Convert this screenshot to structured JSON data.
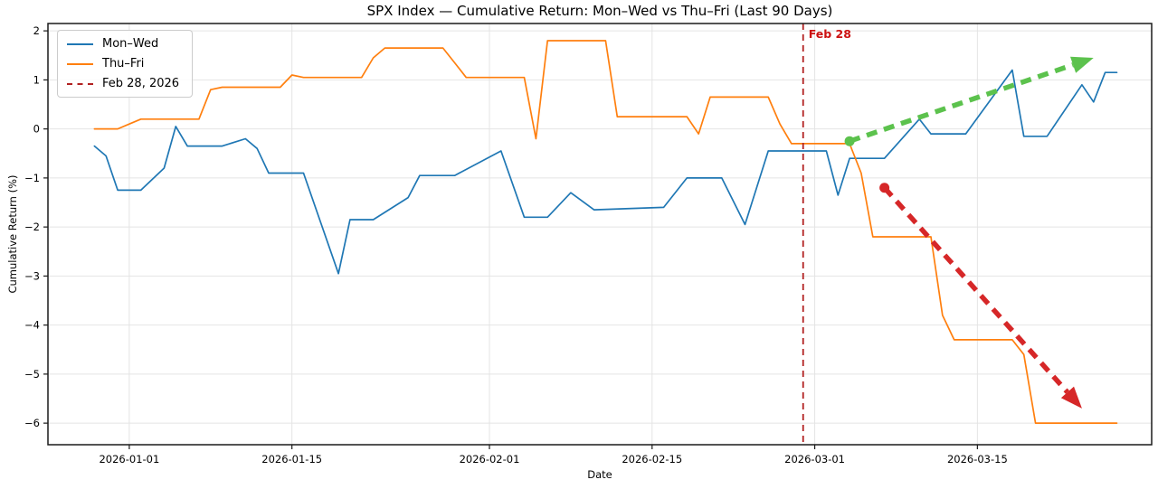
{
  "chart_data": {
    "type": "line",
    "title": "SPX Index — Cumulative Return: Mon–Wed vs Thu–Fri (Last 90 Days)",
    "xlabel": "Date",
    "ylabel": "Cumulative Return (%)",
    "x_domain": [
      "2025-12-25",
      "2026-03-30"
    ],
    "ylim": [
      -6.44,
      2.15
    ],
    "yticks": [
      2,
      1,
      0,
      -1,
      -2,
      -3,
      -4,
      -5,
      -6
    ],
    "xticks": [
      "2026-01-01",
      "2026-01-15",
      "2026-02-01",
      "2026-02-15",
      "2026-03-01",
      "2026-03-15"
    ],
    "grid": true,
    "legend": {
      "position": "upper-left",
      "entries": [
        {
          "label": "Mon–Wed",
          "color": "#1f77b4",
          "style": "solid"
        },
        {
          "label": "Thu–Fri",
          "color": "#ff7f0e",
          "style": "solid"
        },
        {
          "label": "Feb 28, 2026",
          "color": "#b22222",
          "style": "dashed"
        }
      ]
    },
    "series": [
      {
        "name": "Mon–Wed",
        "color": "#1f77b4",
        "points": [
          [
            "2025-12-29",
            -0.35
          ],
          [
            "2025-12-30",
            -0.55
          ],
          [
            "2025-12-31",
            -1.25
          ],
          [
            "2026-01-02",
            -1.25
          ],
          [
            "2026-01-04",
            -0.8
          ],
          [
            "2026-01-05",
            0.05
          ],
          [
            "2026-01-06",
            -0.35
          ],
          [
            "2026-01-09",
            -0.35
          ],
          [
            "2026-01-11",
            -0.2
          ],
          [
            "2026-01-12",
            -0.4
          ],
          [
            "2026-01-13",
            -0.9
          ],
          [
            "2026-01-16",
            -0.9
          ],
          [
            "2026-01-19",
            -2.95
          ],
          [
            "2026-01-20",
            -1.85
          ],
          [
            "2026-01-22",
            -1.85
          ],
          [
            "2026-01-25",
            -1.4
          ],
          [
            "2026-01-26",
            -0.95
          ],
          [
            "2026-01-29",
            -0.95
          ],
          [
            "2026-02-02",
            -0.45
          ],
          [
            "2026-02-04",
            -1.8
          ],
          [
            "2026-02-06",
            -1.8
          ],
          [
            "2026-02-08",
            -1.3
          ],
          [
            "2026-02-10",
            -1.65
          ],
          [
            "2026-02-16",
            -1.6
          ],
          [
            "2026-02-18",
            -1.0
          ],
          [
            "2026-02-21",
            -1.0
          ],
          [
            "2026-02-23",
            -1.95
          ],
          [
            "2026-02-25",
            -0.45
          ],
          [
            "2026-03-02",
            -0.45
          ],
          [
            "2026-03-03",
            -1.35
          ],
          [
            "2026-03-04",
            -0.6
          ],
          [
            "2026-03-07",
            -0.6
          ],
          [
            "2026-03-10",
            0.2
          ],
          [
            "2026-03-11",
            -0.1
          ],
          [
            "2026-03-14",
            -0.1
          ],
          [
            "2026-03-18",
            1.2
          ],
          [
            "2026-03-19",
            -0.15
          ],
          [
            "2026-03-21",
            -0.15
          ],
          [
            "2026-03-24",
            0.9
          ],
          [
            "2026-03-25",
            0.55
          ],
          [
            "2026-03-26",
            1.15
          ],
          [
            "2026-03-27",
            1.15
          ]
        ]
      },
      {
        "name": "Thu–Fri",
        "color": "#ff7f0e",
        "points": [
          [
            "2025-12-29",
            0.0
          ],
          [
            "2025-12-31",
            0.0
          ],
          [
            "2026-01-01",
            0.1
          ],
          [
            "2026-01-02",
            0.2
          ],
          [
            "2026-01-07",
            0.2
          ],
          [
            "2026-01-08",
            0.8
          ],
          [
            "2026-01-09",
            0.85
          ],
          [
            "2026-01-14",
            0.85
          ],
          [
            "2026-01-15",
            1.1
          ],
          [
            "2026-01-16",
            1.05
          ],
          [
            "2026-01-21",
            1.05
          ],
          [
            "2026-01-22",
            1.45
          ],
          [
            "2026-01-23",
            1.65
          ],
          [
            "2026-01-28",
            1.65
          ],
          [
            "2026-01-29",
            1.35
          ],
          [
            "2026-01-30",
            1.05
          ],
          [
            "2026-02-04",
            1.05
          ],
          [
            "2026-02-05",
            -0.2
          ],
          [
            "2026-02-06",
            1.8
          ],
          [
            "2026-02-11",
            1.8
          ],
          [
            "2026-02-12",
            0.25
          ],
          [
            "2026-02-18",
            0.25
          ],
          [
            "2026-02-19",
            -0.1
          ],
          [
            "2026-02-20",
            0.65
          ],
          [
            "2026-02-25",
            0.65
          ],
          [
            "2026-02-26",
            0.1
          ],
          [
            "2026-02-27",
            -0.3
          ],
          [
            "2026-03-04",
            -0.3
          ],
          [
            "2026-03-05",
            -0.9
          ],
          [
            "2026-03-06",
            -2.2
          ],
          [
            "2026-03-11",
            -2.2
          ],
          [
            "2026-03-12",
            -3.8
          ],
          [
            "2026-03-13",
            -4.3
          ],
          [
            "2026-03-18",
            -4.3
          ],
          [
            "2026-03-19",
            -4.6
          ],
          [
            "2026-03-20",
            -6.0
          ],
          [
            "2026-03-27",
            -6.0
          ]
        ]
      }
    ],
    "annotations": {
      "vline": {
        "date": "2026-02-28",
        "label": "Feb 28",
        "color": "#b22222",
        "label_color": "#cc1111"
      },
      "green_arrow": {
        "from": [
          "2026-03-04",
          -0.25
        ],
        "to": [
          "2026-03-25",
          1.45
        ],
        "color": "#5cc24d"
      },
      "red_arrow": {
        "from": [
          "2026-03-07",
          -1.2
        ],
        "to": [
          "2026-03-24",
          -5.7
        ],
        "color": "#d62728"
      }
    }
  }
}
